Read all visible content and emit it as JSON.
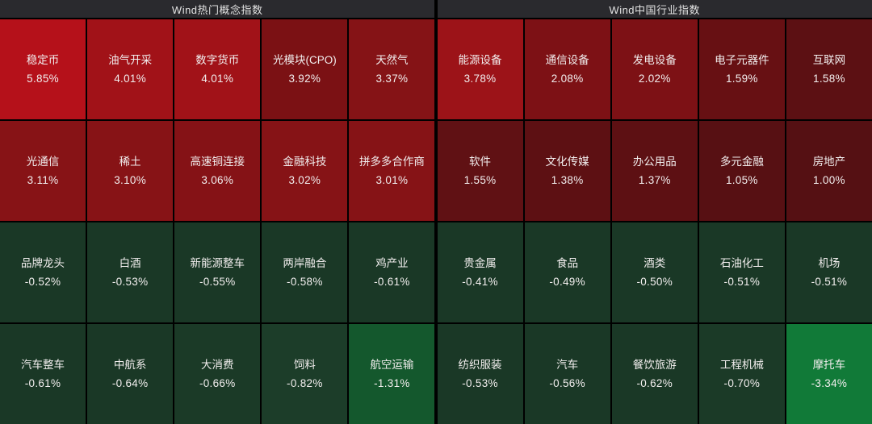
{
  "colors": {
    "background": "#000000",
    "header_bg": "#2a2a2e",
    "header_text": "#e2e2e2",
    "cell_text": "#f2eeee",
    "up_strong": "#b5111a",
    "up_weak": "#551013",
    "down_weak": "#1a3826",
    "down_strong": "#117a38"
  },
  "sections": [
    {
      "title": "Wind热门概念指数",
      "rows": [
        [
          {
            "label": "稳定币",
            "value": "5.85%",
            "bg": "#b5111a"
          },
          {
            "label": "油气开采",
            "value": "4.01%",
            "bg": "#a11218"
          },
          {
            "label": "数字货币",
            "value": "4.01%",
            "bg": "#a11218"
          },
          {
            "label": "光模块(CPO)",
            "value": "3.92%",
            "bg": "#7b1114"
          },
          {
            "label": "天然气",
            "value": "3.37%",
            "bg": "#851316"
          }
        ],
        [
          {
            "label": "光通信",
            "value": "3.11%",
            "bg": "#871316"
          },
          {
            "label": "稀土",
            "value": "3.10%",
            "bg": "#871316"
          },
          {
            "label": "高速铜连接",
            "value": "3.06%",
            "bg": "#851216"
          },
          {
            "label": "金融科技",
            "value": "3.02%",
            "bg": "#861316"
          },
          {
            "label": "拼多多合作商",
            "value": "3.01%",
            "bg": "#861316"
          }
        ],
        [
          {
            "label": "品牌龙头",
            "value": "-0.52%",
            "bg": "#1a3826"
          },
          {
            "label": "白酒",
            "value": "-0.53%",
            "bg": "#1a3826"
          },
          {
            "label": "新能源整车",
            "value": "-0.55%",
            "bg": "#1a3826"
          },
          {
            "label": "两岸融合",
            "value": "-0.58%",
            "bg": "#1a3826"
          },
          {
            "label": "鸡产业",
            "value": "-0.61%",
            "bg": "#1a3826"
          }
        ],
        [
          {
            "label": "汽车整车",
            "value": "-0.61%",
            "bg": "#1a3826"
          },
          {
            "label": "中航系",
            "value": "-0.64%",
            "bg": "#1a3826"
          },
          {
            "label": "大消费",
            "value": "-0.66%",
            "bg": "#1b3a27"
          },
          {
            "label": "饲料",
            "value": "-0.82%",
            "bg": "#1c3d29"
          },
          {
            "label": "航空运输",
            "value": "-1.31%",
            "bg": "#14582d"
          }
        ]
      ]
    },
    {
      "title": "Wind中国行业指数",
      "rows": [
        [
          {
            "label": "能源设备",
            "value": "3.78%",
            "bg": "#9c1318"
          },
          {
            "label": "通信设备",
            "value": "2.08%",
            "bg": "#7d1115"
          },
          {
            "label": "发电设备",
            "value": "2.02%",
            "bg": "#7d1115"
          },
          {
            "label": "电子元器件",
            "value": "1.59%",
            "bg": "#671013"
          },
          {
            "label": "互联网",
            "value": "1.58%",
            "bg": "#5c1013"
          }
        ],
        [
          {
            "label": "软件",
            "value": "1.55%",
            "bg": "#601114"
          },
          {
            "label": "文化传媒",
            "value": "1.38%",
            "bg": "#5d1013"
          },
          {
            "label": "办公用品",
            "value": "1.37%",
            "bg": "#5d1013"
          },
          {
            "label": "多元金融",
            "value": "1.05%",
            "bg": "#571013"
          },
          {
            "label": "房地产",
            "value": "1.00%",
            "bg": "#551013"
          }
        ],
        [
          {
            "label": "贵金属",
            "value": "-0.41%",
            "bg": "#1a3826"
          },
          {
            "label": "食品",
            "value": "-0.49%",
            "bg": "#1a3826"
          },
          {
            "label": "酒类",
            "value": "-0.50%",
            "bg": "#1a3826"
          },
          {
            "label": "石油化工",
            "value": "-0.51%",
            "bg": "#1a3826"
          },
          {
            "label": "机场",
            "value": "-0.51%",
            "bg": "#1a3826"
          }
        ],
        [
          {
            "label": "纺织服装",
            "value": "-0.53%",
            "bg": "#1a3826"
          },
          {
            "label": "汽车",
            "value": "-0.56%",
            "bg": "#1a3826"
          },
          {
            "label": "餐饮旅游",
            "value": "-0.62%",
            "bg": "#1a3826"
          },
          {
            "label": "工程机械",
            "value": "-0.70%",
            "bg": "#1b3a27"
          },
          {
            "label": "摩托车",
            "value": "-3.34%",
            "bg": "#117a38"
          }
        ]
      ]
    }
  ],
  "chart_data": [
    {
      "type": "heatmap",
      "title": "Wind热门概念指数",
      "legend_position": "none",
      "grid": true,
      "items": [
        {
          "name": "稳定币",
          "change_pct": 5.85
        },
        {
          "name": "油气开采",
          "change_pct": 4.01
        },
        {
          "name": "数字货币",
          "change_pct": 4.01
        },
        {
          "name": "光模块(CPO)",
          "change_pct": 3.92
        },
        {
          "name": "天然气",
          "change_pct": 3.37
        },
        {
          "name": "光通信",
          "change_pct": 3.11
        },
        {
          "name": "稀土",
          "change_pct": 3.1
        },
        {
          "name": "高速铜连接",
          "change_pct": 3.06
        },
        {
          "name": "金融科技",
          "change_pct": 3.02
        },
        {
          "name": "拼多多合作商",
          "change_pct": 3.01
        },
        {
          "name": "品牌龙头",
          "change_pct": -0.52
        },
        {
          "name": "白酒",
          "change_pct": -0.53
        },
        {
          "name": "新能源整车",
          "change_pct": -0.55
        },
        {
          "name": "两岸融合",
          "change_pct": -0.58
        },
        {
          "name": "鸡产业",
          "change_pct": -0.61
        },
        {
          "name": "汽车整车",
          "change_pct": -0.61
        },
        {
          "name": "中航系",
          "change_pct": -0.64
        },
        {
          "name": "大消费",
          "change_pct": -0.66
        },
        {
          "name": "饲料",
          "change_pct": -0.82
        },
        {
          "name": "航空运输",
          "change_pct": -1.31
        }
      ]
    },
    {
      "type": "heatmap",
      "title": "Wind中国行业指数",
      "legend_position": "none",
      "grid": true,
      "items": [
        {
          "name": "能源设备",
          "change_pct": 3.78
        },
        {
          "name": "通信设备",
          "change_pct": 2.08
        },
        {
          "name": "发电设备",
          "change_pct": 2.02
        },
        {
          "name": "电子元器件",
          "change_pct": 1.59
        },
        {
          "name": "互联网",
          "change_pct": 1.58
        },
        {
          "name": "软件",
          "change_pct": 1.55
        },
        {
          "name": "文化传媒",
          "change_pct": 1.38
        },
        {
          "name": "办公用品",
          "change_pct": 1.37
        },
        {
          "name": "多元金融",
          "change_pct": 1.05
        },
        {
          "name": "房地产",
          "change_pct": 1.0
        },
        {
          "name": "贵金属",
          "change_pct": -0.41
        },
        {
          "name": "食品",
          "change_pct": -0.49
        },
        {
          "name": "酒类",
          "change_pct": -0.5
        },
        {
          "name": "石油化工",
          "change_pct": -0.51
        },
        {
          "name": "机场",
          "change_pct": -0.51
        },
        {
          "name": "纺织服装",
          "change_pct": -0.53
        },
        {
          "name": "汽车",
          "change_pct": -0.56
        },
        {
          "name": "餐饮旅游",
          "change_pct": -0.62
        },
        {
          "name": "工程机械",
          "change_pct": -0.7
        },
        {
          "name": "摩托车",
          "change_pct": -3.34
        }
      ]
    }
  ]
}
